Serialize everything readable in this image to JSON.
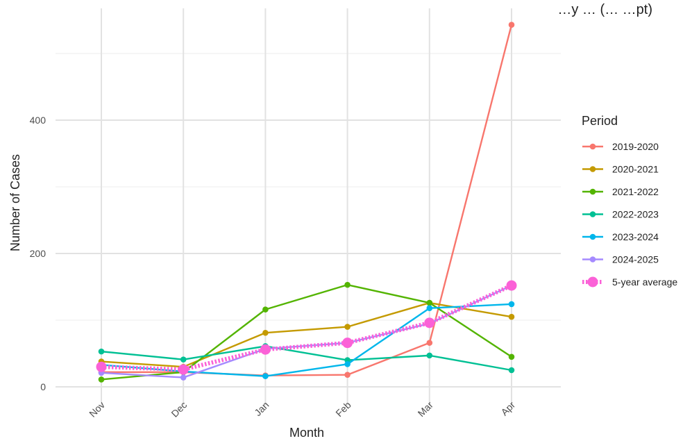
{
  "chart_data": {
    "type": "line",
    "title": "…y … (… …pt)",
    "xlabel": "Month",
    "ylabel": "Number of Cases",
    "categories": [
      "Nov",
      "Dec",
      "Jan",
      "Feb",
      "Mar",
      "Apr"
    ],
    "y_ticks": [
      "0",
      "200",
      "400"
    ],
    "ylim": [
      -5,
      565
    ],
    "grid": true,
    "x_tick_rotation": -45,
    "legend": {
      "title": "Period",
      "placement": "right"
    },
    "series": [
      {
        "name": "2019-2020",
        "color": "#F8766D",
        "values": [
          22,
          22,
          17,
          18,
          66,
          543
        ]
      },
      {
        "name": "2020-2021",
        "color": "#C49A00",
        "values": [
          38,
          30,
          81,
          90,
          126,
          105
        ]
      },
      {
        "name": "2021-2022",
        "color": "#53B400",
        "values": [
          11,
          22,
          116,
          153,
          126,
          45
        ]
      },
      {
        "name": "2022-2023",
        "color": "#00C094",
        "values": [
          53,
          41,
          61,
          40,
          47,
          25
        ]
      },
      {
        "name": "2023-2024",
        "color": "#00B6EB",
        "values": [
          33,
          23,
          16,
          34,
          118,
          124
        ]
      },
      {
        "name": "2024-2025",
        "color": "#A58AFF",
        "values": [
          21,
          14,
          57,
          66,
          95,
          152
        ]
      }
    ],
    "average": {
      "name": "5-year average",
      "color": "#FB61D7",
      "values": [
        30,
        26,
        56,
        66,
        96,
        152
      ]
    }
  }
}
